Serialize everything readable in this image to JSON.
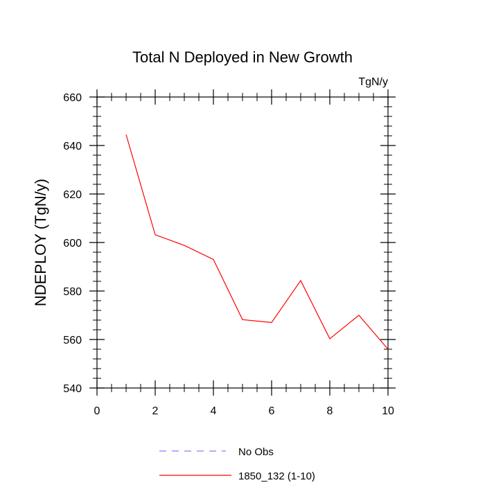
{
  "chart_data": {
    "type": "line",
    "title": "Total N Deployed in New Growth",
    "units_label": "TgN/y",
    "xlabel": "",
    "ylabel": "NDEPLOY  (TgN/y)",
    "xlim": [
      0,
      10
    ],
    "ylim": [
      540,
      660
    ],
    "x_ticks": [
      0,
      2,
      4,
      6,
      8,
      10
    ],
    "y_ticks": [
      540,
      560,
      580,
      600,
      620,
      640,
      660
    ],
    "x_minor_step": 0.5,
    "y_minor_step": 4,
    "grid": false,
    "series": [
      {
        "name": "No Obs",
        "color": "#7f7fff",
        "dash": "dashed",
        "x": [],
        "values": []
      },
      {
        "name": "1850_132 (1-10)",
        "color": "#ff0000",
        "dash": "solid",
        "x": [
          1,
          2,
          3,
          4,
          5,
          6,
          7,
          8,
          9,
          10
        ],
        "values": [
          644.5,
          603.2,
          598.8,
          593.0,
          568.2,
          567.0,
          584.3,
          560.3,
          570.0,
          556.0
        ]
      }
    ],
    "legend_position": "bottom-center"
  }
}
